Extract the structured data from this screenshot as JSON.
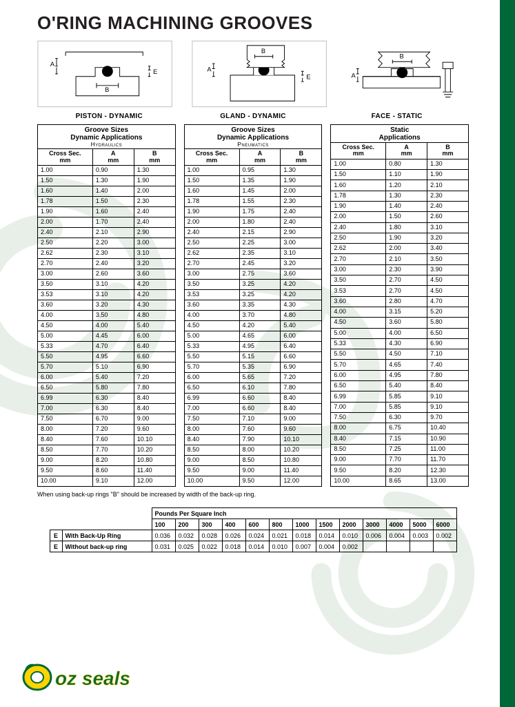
{
  "title": "O'RING MACHINING GROOVES",
  "sections": [
    "PISTON - DYNAMIC",
    "GLAND - DYNAMIC",
    "FACE - STATIC"
  ],
  "table_meta": {
    "hydraulics": {
      "title": "Groove Sizes",
      "subtitle1": "Dynamic Applications",
      "subtitle2": "Hydraulics"
    },
    "pneumatics": {
      "title": "Groove Sizes",
      "subtitle1": "Dynamic Applications",
      "subtitle2": "Pneumatics"
    },
    "static": {
      "title": "Static",
      "subtitle1": "Applications",
      "subtitle2": ""
    }
  },
  "col_headers": {
    "cs": "Cross Sec.\nmm",
    "a": "A\nmm",
    "b": "B\nmm"
  },
  "cross_sections": [
    "1.00",
    "1.50",
    "1.60",
    "1.78",
    "1.90",
    "2.00",
    "2.40",
    "2.50",
    "2.62",
    "2.70",
    "3.00",
    "3.50",
    "3.53",
    "3.60",
    "4.00",
    "4.50",
    "5.00",
    "5.33",
    "5.50",
    "5.70",
    "6.00",
    "6.50",
    "6.99",
    "7.00",
    "7.50",
    "8.00",
    "8.40",
    "8.50",
    "9.00",
    "9.50",
    "10.00"
  ],
  "hydraulics": {
    "A": [
      "0.90",
      "1.30",
      "1.40",
      "1.50",
      "1.60",
      "1.70",
      "2.10",
      "2.20",
      "2.30",
      "2.40",
      "2.60",
      "3.10",
      "3.10",
      "3.20",
      "3.50",
      "4.00",
      "4.45",
      "4.70",
      "4.95",
      "5.10",
      "5.40",
      "5.80",
      "6.30",
      "6.30",
      "6.70",
      "7.20",
      "7.60",
      "7.70",
      "8.20",
      "8.60",
      "9.10"
    ],
    "B": [
      "1.30",
      "1.90",
      "2.00",
      "2.30",
      "2.40",
      "2.40",
      "2.90",
      "3.00",
      "3.10",
      "3.20",
      "3.60",
      "4.20",
      "4.20",
      "4.30",
      "4.80",
      "5.40",
      "6.00",
      "6.40",
      "6.60",
      "6.90",
      "7.20",
      "7.80",
      "8.40",
      "8.40",
      "9.00",
      "9.60",
      "10.10",
      "10.20",
      "10.80",
      "11.40",
      "12.00"
    ]
  },
  "pneumatics": {
    "A": [
      "0.95",
      "1.35",
      "1.45",
      "1.55",
      "1.75",
      "1.80",
      "2.15",
      "2.25",
      "2.35",
      "2.45",
      "2.75",
      "3.25",
      "3.25",
      "3.35",
      "3.70",
      "4.20",
      "4.65",
      "4.95",
      "5.15",
      "5.35",
      "5.65",
      "6.10",
      "6.60",
      "6.60",
      "7.10",
      "7.60",
      "7.90",
      "8.00",
      "8.50",
      "9.00",
      "9.50"
    ],
    "B": [
      "1.30",
      "1.90",
      "2.00",
      "2.30",
      "2.40",
      "2.40",
      "2.90",
      "3.00",
      "3.10",
      "3.20",
      "3.60",
      "4.20",
      "4.20",
      "4.30",
      "4.80",
      "5.40",
      "6.00",
      "6.40",
      "6.60",
      "6.90",
      "7.20",
      "7.80",
      "8.40",
      "8.40",
      "9.00",
      "9.60",
      "10.10",
      "10.20",
      "10.80",
      "11.40",
      "12.00"
    ]
  },
  "static": {
    "A": [
      "0.80",
      "1.10",
      "1.20",
      "1.30",
      "1.40",
      "1.50",
      "1.80",
      "1.90",
      "2.00",
      "2.10",
      "2.30",
      "2.70",
      "2.70",
      "2.80",
      "3.15",
      "3.60",
      "4.00",
      "4.30",
      "4.50",
      "4.65",
      "4.95",
      "5.40",
      "5.85",
      "5.85",
      "6.30",
      "6.75",
      "7.15",
      "7.25",
      "7.70",
      "8.20",
      "8.65"
    ],
    "B": [
      "1.30",
      "1.90",
      "2.10",
      "2.30",
      "2.40",
      "2.60",
      "3.10",
      "3.20",
      "3.40",
      "3.50",
      "3.90",
      "4.50",
      "4.50",
      "4.70",
      "5.20",
      "5.80",
      "6.50",
      "6.90",
      "7.10",
      "7.40",
      "7.80",
      "8.40",
      "9.10",
      "9.10",
      "9.70",
      "10.40",
      "10.90",
      "11.00",
      "11.70",
      "12.30",
      "13.00"
    ]
  },
  "note": "When using back-up rings \"B\" should be increased by width of the back-up ring.",
  "psi": {
    "title": "Pounds Per Square Inch",
    "headers": [
      "100",
      "200",
      "300",
      "400",
      "600",
      "800",
      "1000",
      "1500",
      "2000",
      "3000",
      "4000",
      "5000",
      "6000"
    ],
    "rows": [
      {
        "e": "E",
        "label": "With Back-Up Ring",
        "vals": [
          "0.036",
          "0.032",
          "0.028",
          "0.026",
          "0.024",
          "0.021",
          "0.018",
          "0.014",
          "0.010",
          "0.006",
          "0.004",
          "0.003",
          "0.002"
        ]
      },
      {
        "e": "E",
        "label": "Without back-up ring",
        "vals": [
          "0.031",
          "0.025",
          "0.022",
          "0.018",
          "0.014",
          "0.010",
          "0.007",
          "0.004",
          "0.002",
          "",
          "",
          "",
          ""
        ]
      }
    ]
  },
  "logo_text": "oz seals",
  "colors": {
    "brand_green": "#006838",
    "brand_yellow": "#ffd400",
    "text": "#231f20",
    "watermark": "#e8efe9"
  }
}
